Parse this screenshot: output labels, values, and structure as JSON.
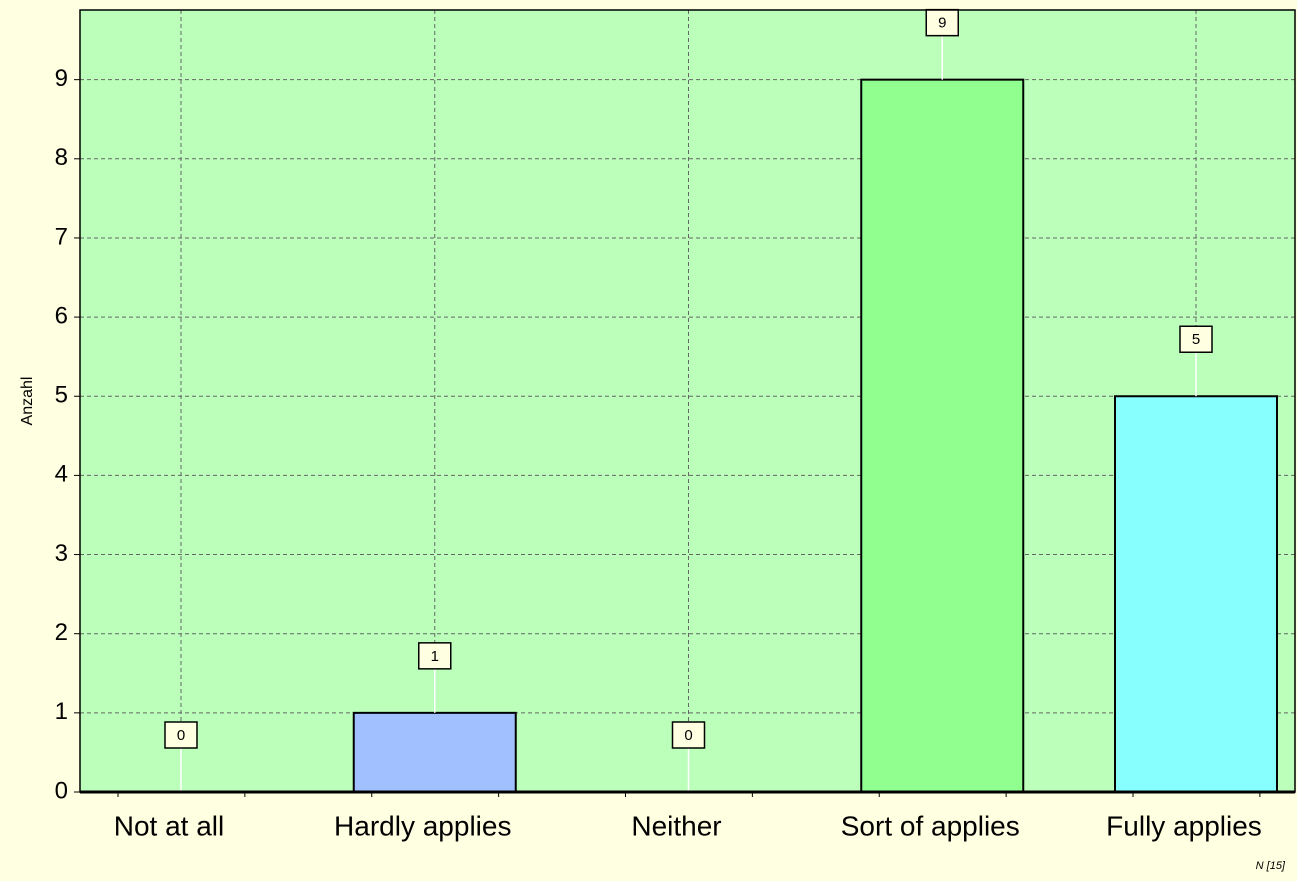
{
  "chart_data": {
    "type": "bar",
    "ylabel": "Anzahl",
    "categories": [
      "Not at all",
      "Hardly applies",
      "Neither",
      "Sort of applies",
      "Fully applies"
    ],
    "values": [
      0,
      1,
      0,
      9,
      5
    ],
    "colors": [
      null,
      "#a0c0ff",
      null,
      "#90ff90",
      "#88ffff"
    ],
    "ylim": [
      0,
      9.88
    ],
    "yticks": [
      0,
      1,
      2,
      3,
      4,
      5,
      6,
      7,
      8,
      9
    ],
    "grid": true,
    "note": "N [15]"
  }
}
